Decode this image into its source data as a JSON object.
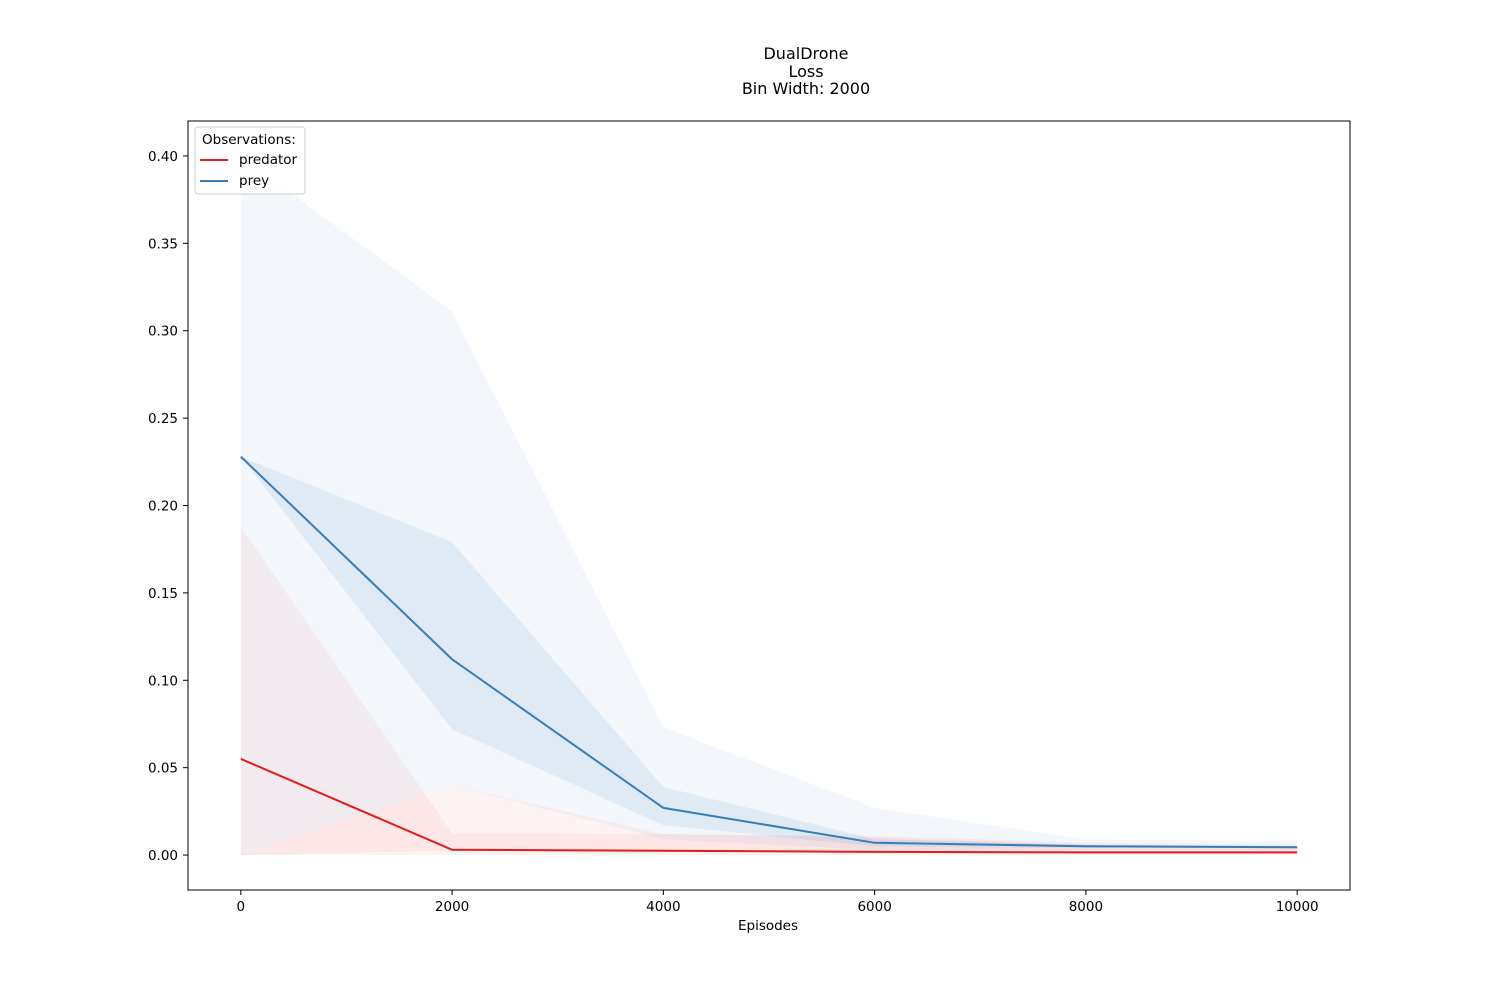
{
  "chart_data": {
    "type": "line",
    "title_lines": [
      "DualDrone",
      "Loss",
      "Bin Width: 2000"
    ],
    "xlabel": "Episodes",
    "ylabel": "",
    "xlim": [
      -500,
      10500
    ],
    "ylim": [
      -0.02,
      0.42
    ],
    "xticks": [
      0,
      2000,
      4000,
      6000,
      8000,
      10000
    ],
    "xtick_labels": [
      "0",
      "2000",
      "4000",
      "6000",
      "8000",
      "10000"
    ],
    "yticks": [
      0.0,
      0.05,
      0.1,
      0.15,
      0.2,
      0.25,
      0.3,
      0.35,
      0.4
    ],
    "ytick_labels": [
      "0.00",
      "0.05",
      "0.10",
      "0.15",
      "0.20",
      "0.25",
      "0.30",
      "0.35",
      "0.40"
    ],
    "grid": false,
    "legend": {
      "title": "Observations:",
      "placement": "top-left"
    },
    "x": [
      0,
      2000,
      4000,
      6000,
      8000,
      10000
    ],
    "series": [
      {
        "name": "predator",
        "color": "#e41a1c",
        "values": [
          0.055,
          0.003,
          0.0025,
          0.0018,
          0.0015,
          0.0015
        ],
        "bands": [
          {
            "lower": [
              0.0,
              0.0025,
              0.002,
              0.0015,
              0.001,
              0.001
            ],
            "upper": [
              0.188,
              0.0125,
              0.012,
              0.01,
              0.006,
              0.005
            ],
            "opacity": 0.06
          },
          {
            "lower": [
              0.0,
              0.0,
              0.0,
              0.0,
              0.0,
              0.0
            ],
            "upper": [
              0.0,
              0.04,
              0.012,
              0.011,
              0.007,
              0.006
            ],
            "opacity": 0.05
          }
        ]
      },
      {
        "name": "prey",
        "color": "#377eb8",
        "values": [
          0.228,
          0.112,
          0.027,
          0.007,
          0.005,
          0.0045
        ],
        "bands": [
          {
            "lower": [
              0.0,
              0.04,
              0.009,
              0.003,
              0.003,
              0.003
            ],
            "upper": [
              0.4,
              0.311,
              0.073,
              0.027,
              0.009,
              0.008
            ],
            "opacity": 0.06
          },
          {
            "lower": [
              0.228,
              0.072,
              0.017,
              0.005,
              0.004,
              0.004
            ],
            "upper": [
              0.228,
              0.179,
              0.039,
              0.009,
              0.006,
              0.005
            ],
            "opacity": 0.1
          }
        ]
      }
    ]
  }
}
